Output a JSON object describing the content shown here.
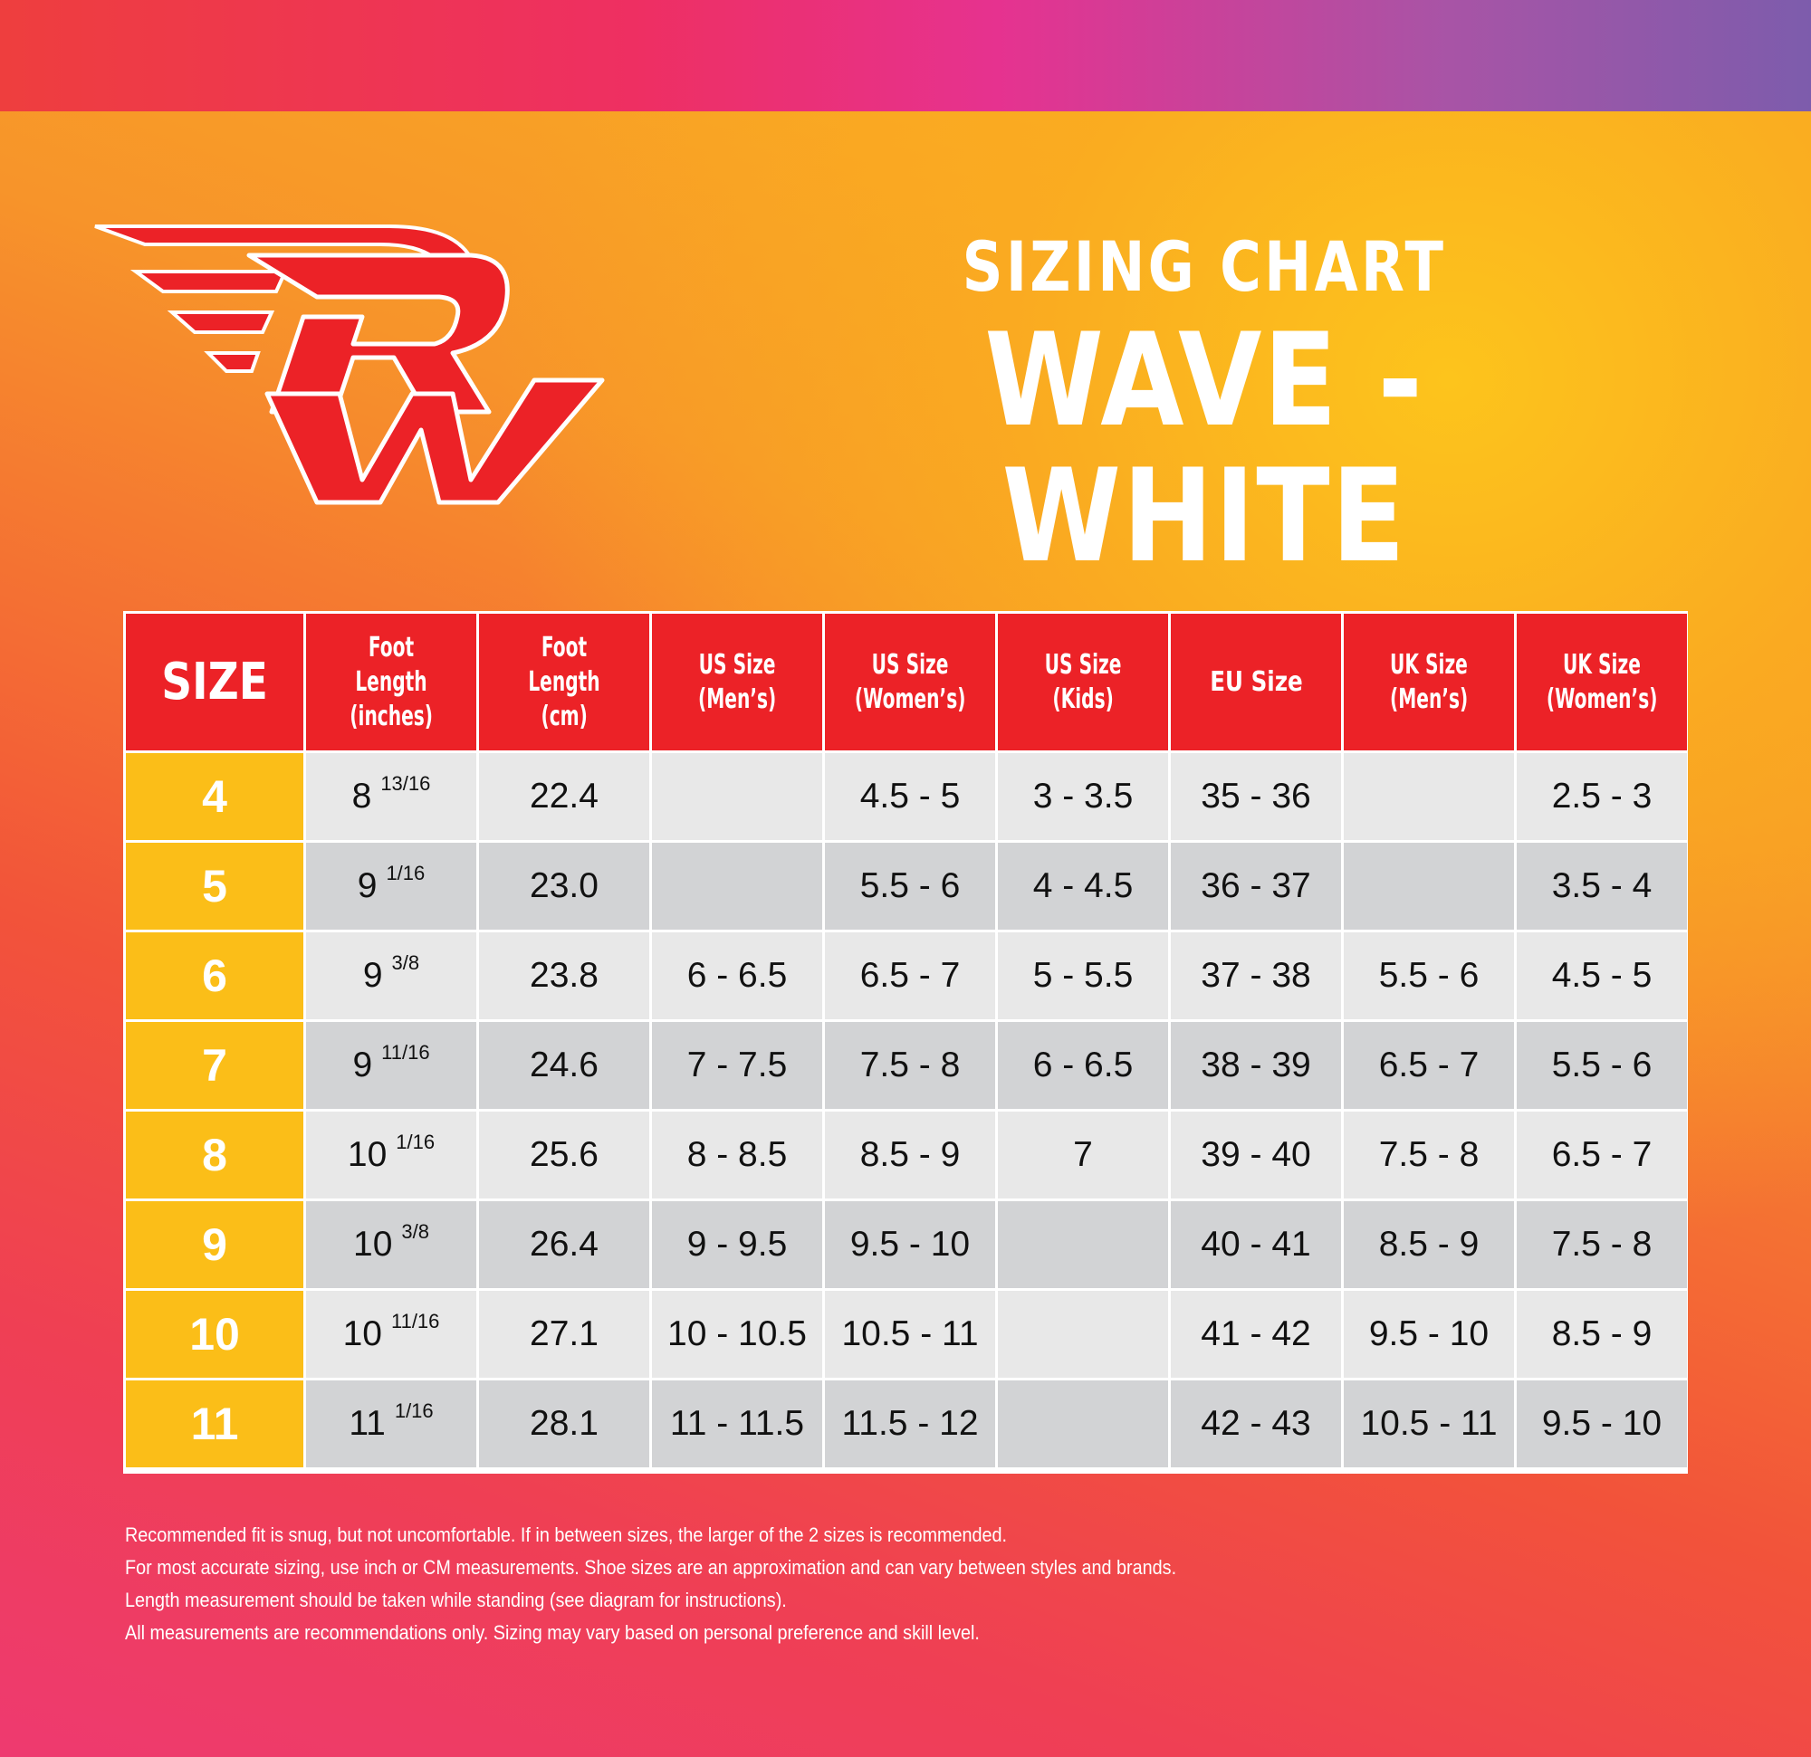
{
  "header": {
    "title_line1": "SIZING CHART",
    "title_line2": "WAVE - WHITE"
  },
  "logo": {
    "letters": "RW"
  },
  "table": {
    "columns": [
      {
        "line1": "SIZE",
        "line2": ""
      },
      {
        "line1": "Foot Length",
        "line2": "(inches)"
      },
      {
        "line1": "Foot Length",
        "line2": "(cm)"
      },
      {
        "line1": "US Size",
        "line2": "(Men’s)"
      },
      {
        "line1": "US Size",
        "line2": "(Women’s)"
      },
      {
        "line1": "US Size",
        "line2": "(Kids)"
      },
      {
        "line1": "EU Size",
        "line2": ""
      },
      {
        "line1": "UK Size",
        "line2": "(Men’s)"
      },
      {
        "line1": "UK Size",
        "line2": "(Women’s)"
      }
    ],
    "rows": [
      {
        "size": "4",
        "inch_whole": "8",
        "inch_frac": "13/16",
        "cm": "22.4",
        "us_mens": "",
        "us_womens": "4.5 - 5",
        "us_kids": "3 - 3.5",
        "eu": "35 - 36",
        "uk_mens": "",
        "uk_womens": "2.5 - 3"
      },
      {
        "size": "5",
        "inch_whole": "9",
        "inch_frac": "1/16",
        "cm": "23.0",
        "us_mens": "",
        "us_womens": "5.5 - 6",
        "us_kids": "4 - 4.5",
        "eu": "36 - 37",
        "uk_mens": "",
        "uk_womens": "3.5 - 4"
      },
      {
        "size": "6",
        "inch_whole": "9",
        "inch_frac": "3/8",
        "cm": "23.8",
        "us_mens": "6 - 6.5",
        "us_womens": "6.5 - 7",
        "us_kids": "5 - 5.5",
        "eu": "37 - 38",
        "uk_mens": "5.5 - 6",
        "uk_womens": "4.5 - 5"
      },
      {
        "size": "7",
        "inch_whole": "9",
        "inch_frac": "11/16",
        "cm": "24.6",
        "us_mens": "7 - 7.5",
        "us_womens": "7.5 - 8",
        "us_kids": "6 - 6.5",
        "eu": "38 - 39",
        "uk_mens": "6.5 - 7",
        "uk_womens": "5.5 - 6"
      },
      {
        "size": "8",
        "inch_whole": "10",
        "inch_frac": "1/16",
        "cm": "25.6",
        "us_mens": "8 - 8.5",
        "us_womens": "8.5 - 9",
        "us_kids": "7",
        "eu": "39 - 40",
        "uk_mens": "7.5 - 8",
        "uk_womens": "6.5 - 7"
      },
      {
        "size": "9",
        "inch_whole": "10",
        "inch_frac": "3/8",
        "cm": "26.4",
        "us_mens": "9 - 9.5",
        "us_womens": "9.5 - 10",
        "us_kids": "",
        "eu": "40 - 41",
        "uk_mens": "8.5 - 9",
        "uk_womens": "7.5 - 8"
      },
      {
        "size": "10",
        "inch_whole": "10",
        "inch_frac": "11/16",
        "cm": "27.1",
        "us_mens": "10 - 10.5",
        "us_womens": "10.5 - 11",
        "us_kids": "",
        "eu": "41 - 42",
        "uk_mens": "9.5 - 10",
        "uk_womens": "8.5 - 9"
      },
      {
        "size": "11",
        "inch_whole": "11",
        "inch_frac": "1/16",
        "cm": "28.1",
        "us_mens": "11 - 11.5",
        "us_womens": "11.5 - 12",
        "us_kids": "",
        "eu": "42 - 43",
        "uk_mens": "10.5 - 11",
        "uk_womens": "9.5 - 10"
      }
    ]
  },
  "notes": [
    "Recommended fit is snug, but not uncomfortable. If in between sizes, the larger of the 2 sizes is recommended.",
    "For most accurate sizing, use inch or CM measurements.  Shoe sizes are an approximation and can vary between styles and brands.",
    "Length measurement should be taken while standing (see diagram for instructions).",
    "All measurements are recommendations only.  Sizing may vary based on personal preference and skill level."
  ],
  "colors": {
    "header_red": "#ec2227",
    "size_yellow": "#fbbe18",
    "row_light": "#e8e8e8",
    "row_dark": "#d2d3d5"
  }
}
